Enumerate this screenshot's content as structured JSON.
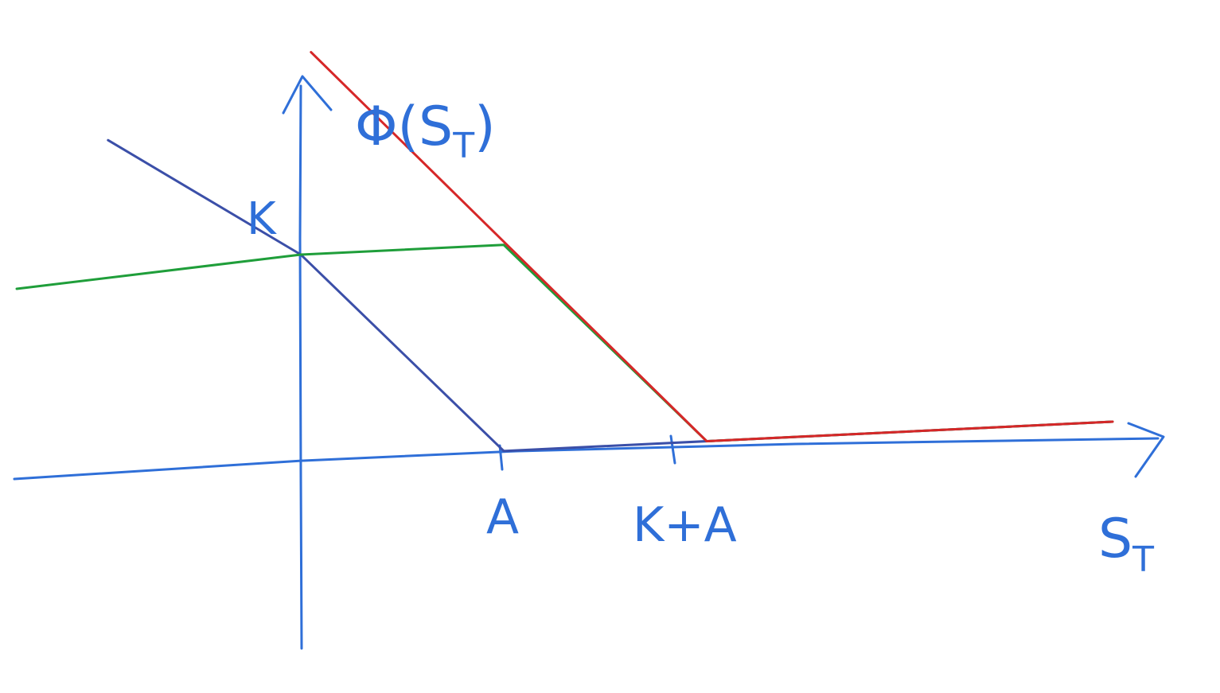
{
  "chart_data": {
    "type": "line",
    "title": "",
    "xlabel": "S_T",
    "ylabel": "Φ(S_T)",
    "xlabel_main": "S",
    "xlabel_sub": "T",
    "ylabel_main": "Φ(S",
    "ylabel_sub": "T",
    "ylabel_close": ")",
    "x_tick_labels": [
      "A",
      "K+A"
    ],
    "y_tick_labels": [
      "K"
    ],
    "xlim": [
      -1.45,
      4.2
    ],
    "ylim": [
      -0.8,
      1.8
    ],
    "grid": false,
    "legend": "none",
    "series": [
      {
        "color": "#3b4fa8",
        "points": [
          [
            -0.95,
            1.6
          ],
          [
            0,
            1.0
          ],
          [
            1.0,
            0.0
          ],
          [
            4.0,
            0.0
          ]
        ]
      },
      {
        "color": "#1f9e3a",
        "points": [
          [
            -1.4,
            0.9
          ],
          [
            0,
            1.0
          ],
          [
            1.0,
            1.0
          ],
          [
            2.0,
            0.0
          ],
          [
            4.0,
            0.0
          ]
        ]
      },
      {
        "color": "#d62728",
        "points": [
          [
            0.05,
            1.98
          ],
          [
            2.0,
            0.0
          ],
          [
            4.0,
            0.0
          ]
        ]
      }
    ],
    "colors": {
      "axis": "#2f6fd8"
    }
  }
}
